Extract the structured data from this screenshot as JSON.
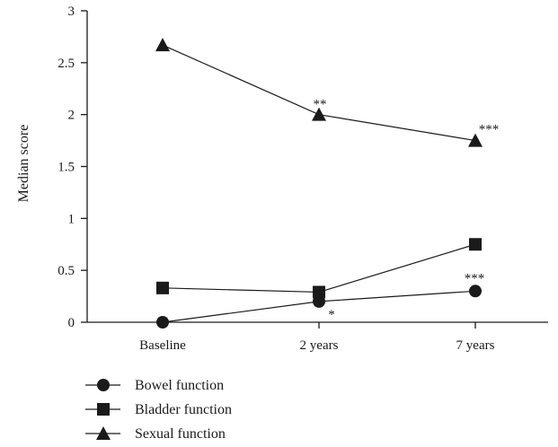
{
  "chart_data": {
    "type": "line",
    "categories": [
      "Baseline",
      "2 years",
      "7 years"
    ],
    "ylabel": "Median score",
    "xlabel": "",
    "ylim": [
      0,
      3
    ],
    "yticks": [
      "0",
      "0.5",
      "1",
      "1.5",
      "2",
      "2.5",
      "3"
    ],
    "grid": false,
    "legend_position": "bottom-left",
    "series": [
      {
        "name": "Bowel function",
        "marker": "circle",
        "values": [
          0.0,
          0.2,
          0.3
        ]
      },
      {
        "name": "Bladder function",
        "marker": "square",
        "values": [
          0.33,
          0.29,
          0.75
        ]
      },
      {
        "name": "Sexual function",
        "marker": "triangle",
        "values": [
          2.67,
          2.0,
          1.75
        ]
      }
    ],
    "annotations": [
      {
        "text": "**",
        "category": "2 years",
        "series": "Sexual function"
      },
      {
        "text": "***",
        "category": "7 years",
        "series": "Sexual function"
      },
      {
        "text": "*",
        "category": "2 years",
        "series": "Bowel function"
      },
      {
        "text": "***",
        "category": "7 years",
        "series": "Bowel function"
      }
    ]
  }
}
